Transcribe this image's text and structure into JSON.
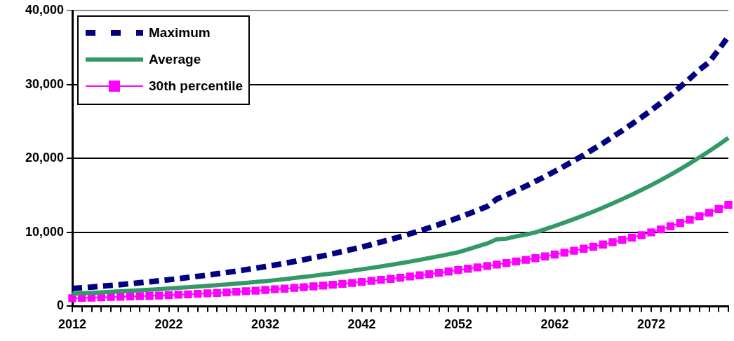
{
  "chart_data": {
    "type": "line",
    "categories": [
      "2012",
      null,
      null,
      null,
      null,
      null,
      null,
      null,
      null,
      null,
      "2022",
      null,
      null,
      null,
      null,
      null,
      null,
      null,
      null,
      null,
      "2032",
      null,
      null,
      null,
      null,
      null,
      null,
      null,
      null,
      null,
      "2042",
      null,
      null,
      null,
      null,
      null,
      null,
      null,
      null,
      null,
      "2052",
      null,
      null,
      null,
      null,
      null,
      null,
      null,
      null,
      null,
      "2062",
      null,
      null,
      null,
      null,
      null,
      null,
      null,
      null,
      null,
      "2072",
      null,
      null,
      null,
      null,
      null,
      null,
      null,
      null
    ],
    "ylim": [
      0,
      40000
    ],
    "yticks": [
      0,
      {
        "value": 10000,
        "label": "10,000"
      },
      {
        "value": 20000,
        "label": "20,000"
      },
      {
        "value": 30000,
        "label": "30,000"
      },
      {
        "value": 40000,
        "label": "40,000"
      }
    ],
    "grid": "y",
    "legend": "top left",
    "series": [
      {
        "name": "Maximum",
        "color": "#000080",
        "line_style": "dashed",
        "marker": "none",
        "values": [
          2400,
          2500,
          2600,
          2710,
          2820,
          2930,
          3060,
          3180,
          3310,
          3450,
          3590,
          3730,
          3890,
          4050,
          4210,
          4390,
          4570,
          4750,
          4950,
          5150,
          5360,
          5580,
          5810,
          6050,
          6300,
          6560,
          6820,
          7100,
          7400,
          7700,
          8020,
          8340,
          8690,
          9040,
          9410,
          9800,
          10200,
          10620,
          11060,
          11510,
          11980,
          12470,
          12980,
          13500,
          14500,
          15050,
          15650,
          16250,
          16900,
          17550,
          18250,
          18950,
          19700,
          20450,
          21250,
          22050,
          22900,
          23750,
          24650,
          25550,
          26500,
          27500,
          28550,
          29650,
          30800,
          32000,
          33000,
          34700,
          36500
        ]
      },
      {
        "name": "Average",
        "color": "#339966",
        "line_style": "solid",
        "marker": "none",
        "values": [
          1700,
          1760,
          1820,
          1880,
          1950,
          2020,
          2090,
          2160,
          2240,
          2320,
          2400,
          2490,
          2570,
          2660,
          2760,
          2860,
          2960,
          3060,
          3170,
          3280,
          3400,
          3530,
          3670,
          3820,
          3970,
          4120,
          4290,
          4450,
          4630,
          4810,
          5000,
          5190,
          5390,
          5600,
          5820,
          6040,
          6280,
          6520,
          6770,
          7030,
          7300,
          7700,
          8100,
          8500,
          9050,
          9150,
          9450,
          9700,
          10000,
          10420,
          10860,
          11320,
          11790,
          12290,
          12800,
          13340,
          13900,
          14490,
          15090,
          15730,
          16390,
          17080,
          17790,
          18540,
          19320,
          20130,
          20970,
          21850,
          22770
        ]
      },
      {
        "name": "30th percentile",
        "color": "#ff00ff",
        "line_style": "solid",
        "marker": "square",
        "values": [
          1100,
          1130,
          1170,
          1210,
          1250,
          1280,
          1330,
          1370,
          1410,
          1450,
          1500,
          1560,
          1620,
          1680,
          1750,
          1810,
          1880,
          1960,
          2030,
          2110,
          2200,
          2290,
          2380,
          2480,
          2580,
          2690,
          2800,
          2910,
          3030,
          3150,
          3300,
          3430,
          3570,
          3710,
          3860,
          4020,
          4180,
          4340,
          4520,
          4700,
          4900,
          5080,
          5260,
          5450,
          5640,
          5850,
          6060,
          6280,
          6500,
          6740,
          7000,
          7250,
          7510,
          7780,
          8060,
          8350,
          8660,
          8970,
          9290,
          9620,
          10000,
          10400,
          10820,
          11250,
          11700,
          12170,
          12650,
          13160,
          13700
        ]
      }
    ]
  }
}
